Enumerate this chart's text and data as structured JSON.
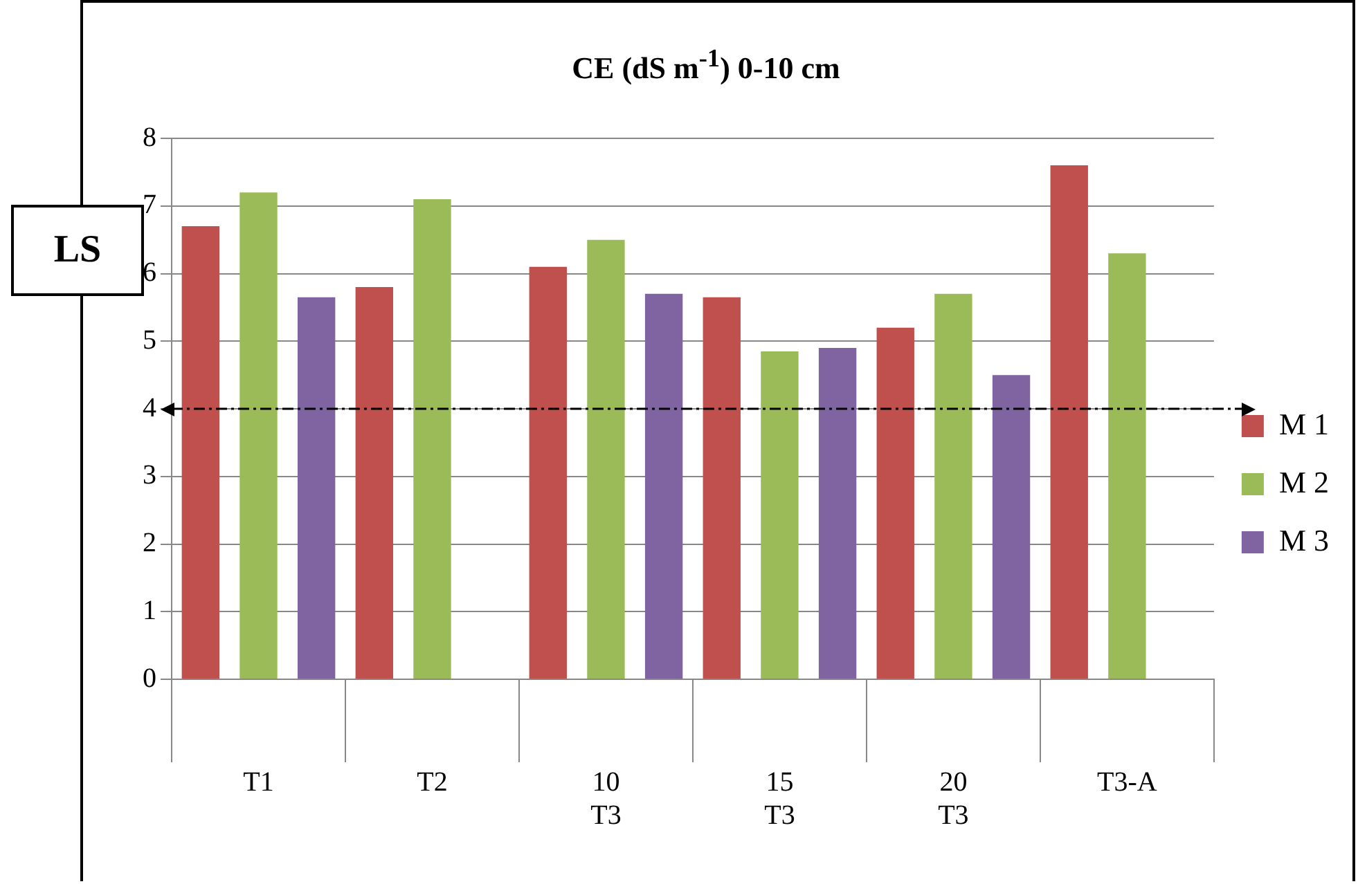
{
  "chart_data": {
    "type": "bar",
    "title": "CE (dS m$^{-1}$) 0-10 cm",
    "categories": [
      "T1",
      "T2",
      "10\nT3",
      "15\nT3",
      "20\nT3",
      "T3-A"
    ],
    "series": [
      {
        "name": "M 1",
        "color": "#c0504d",
        "values": [
          6.7,
          5.8,
          6.1,
          5.65,
          5.2,
          7.6
        ]
      },
      {
        "name": "M 2",
        "color": "#9bbb59",
        "values": [
          7.2,
          7.1,
          6.5,
          4.85,
          5.7,
          6.3
        ]
      },
      {
        "name": "M 3",
        "color": "#8064a2",
        "values": [
          5.65,
          null,
          5.7,
          4.9,
          4.5,
          null
        ]
      }
    ],
    "ylim": [
      0,
      8
    ],
    "yticks": [
      0,
      1,
      2,
      3,
      4,
      5,
      6,
      7,
      8
    ],
    "grid": "y",
    "legend": "right",
    "ref_lines": [
      {
        "axis": "y",
        "value": 4,
        "color": "#000000",
        "line_style": "dashed"
      }
    ],
    "annotations": [
      "LS"
    ]
  }
}
